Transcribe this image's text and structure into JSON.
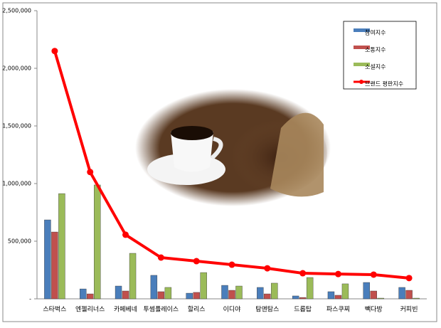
{
  "chart_data": {
    "type": "bar",
    "categories": [
      "스타벅스",
      "엔젤리너스",
      "카페베네",
      "투썸플레이스",
      "할리스",
      "이디야",
      "탐앤탐스",
      "드롭탑",
      "파스쿠찌",
      "빽다방",
      "커피빈"
    ],
    "series": [
      {
        "name": "참여지수",
        "type": "bar",
        "color": "#4a7ebb",
        "values": [
          685000,
          86000,
          111000,
          204000,
          49000,
          117000,
          99000,
          25000,
          62000,
          142000,
          99000
        ]
      },
      {
        "name": "소통지수",
        "type": "bar",
        "color": "#c0504d",
        "values": [
          580000,
          43000,
          68000,
          62000,
          56000,
          74000,
          43000,
          12000,
          31000,
          68000,
          74000
        ]
      },
      {
        "name": "소셜지수",
        "type": "bar",
        "color": "#9bbb59",
        "values": [
          913000,
          988000,
          395000,
          99000,
          228000,
          111000,
          136000,
          185000,
          130000,
          6000,
          6000
        ]
      },
      {
        "name": "브랜드 평판지수",
        "type": "line",
        "color": "#ff0000",
        "values": [
          2150000,
          1100000,
          556000,
          358000,
          327000,
          296000,
          265000,
          222000,
          215000,
          210000,
          180000
        ]
      }
    ],
    "ylim": [
      0,
      2500000
    ],
    "yticks": [
      {
        "value": 0,
        "label": "-"
      },
      {
        "value": 500000,
        "label": "500,000"
      },
      {
        "value": 1000000,
        "label": "1,000,000"
      },
      {
        "value": 1500000,
        "label": "1,500,000"
      },
      {
        "value": 2000000,
        "label": "2,000,000"
      },
      {
        "value": 2500000,
        "label": "2,500,000"
      }
    ],
    "grid": false
  }
}
